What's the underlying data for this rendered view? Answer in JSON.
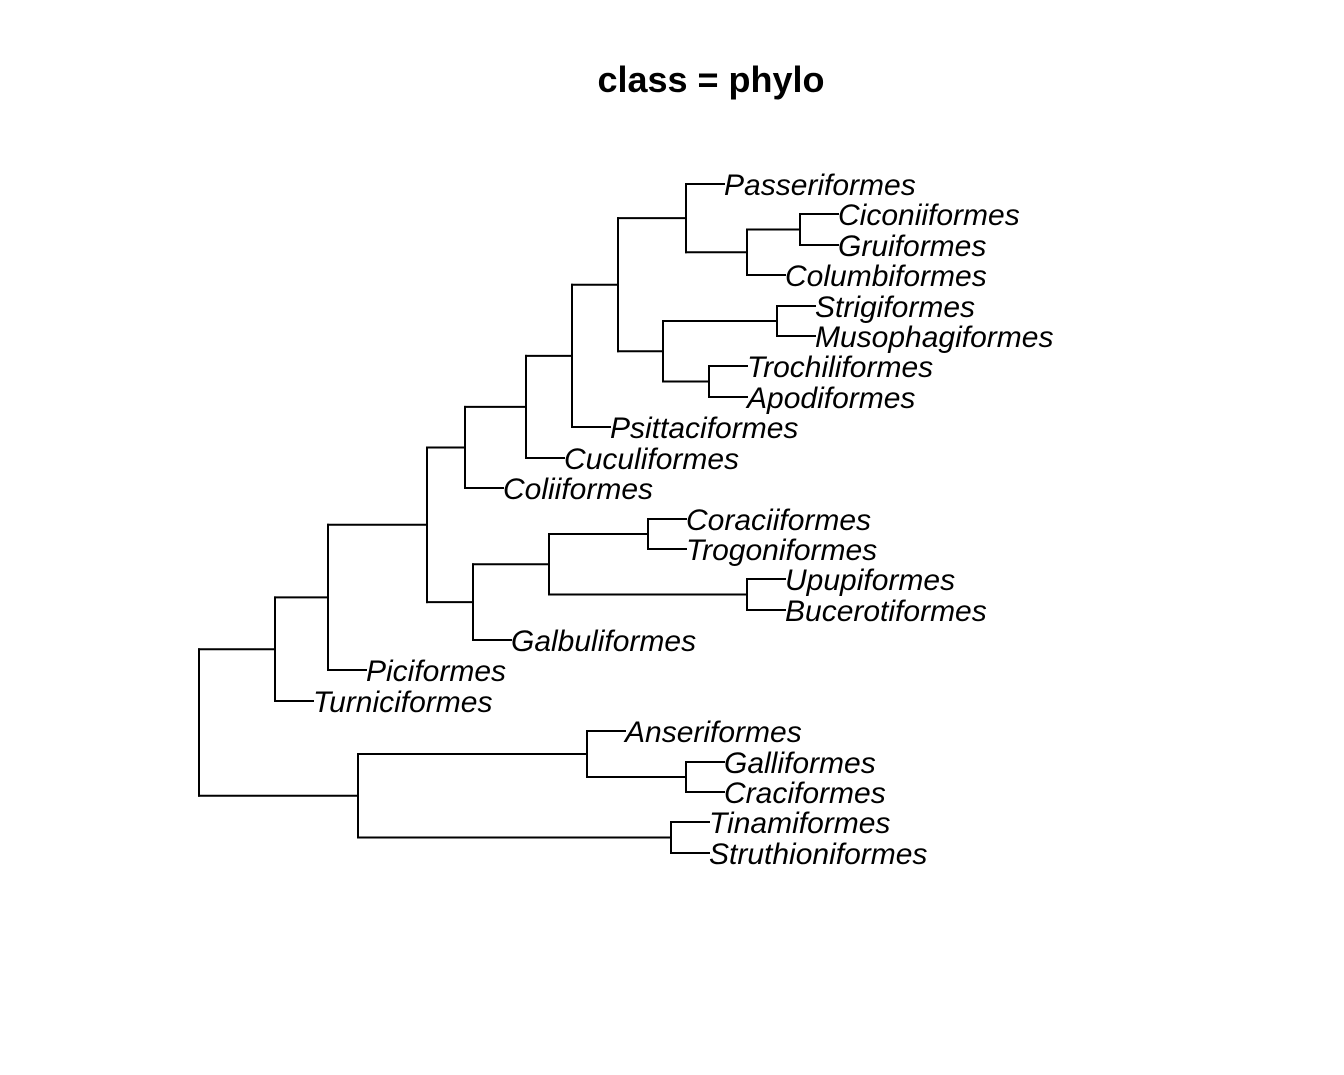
{
  "title": "class = phylo",
  "tree": {
    "children": [
      {
        "children": [
          {
            "children": [
              {
                "children": [
                  {
                    "children": [
                      {
                        "children": [
                          {
                            "children": [
                              {
                                "children": [
                                  {
                                    "name": "Passeriformes"
                                  },
                                  {
                                    "children": [
                                      {
                                        "children": [
                                          {
                                            "name": "Ciconiiformes"
                                          },
                                          {
                                            "name": "Gruiformes"
                                          }
                                        ]
                                      },
                                      {
                                        "name": "Columbiformes"
                                      }
                                    ]
                                  }
                                ]
                              },
                              {
                                "children": [
                                  {
                                    "children": [
                                      {
                                        "name": "Strigiformes"
                                      },
                                      {
                                        "name": "Musophagiformes"
                                      }
                                    ]
                                  },
                                  {
                                    "children": [
                                      {
                                        "name": "Trochiliformes"
                                      },
                                      {
                                        "name": "Apodiformes"
                                      }
                                    ]
                                  }
                                ]
                              }
                            ]
                          },
                          {
                            "name": "Psittaciformes"
                          }
                        ]
                      },
                      {
                        "name": "Cuculiformes"
                      }
                    ]
                  },
                  {
                    "name": "Coliiformes"
                  }
                ]
              },
              {
                "children": [
                  {
                    "children": [
                      {
                        "children": [
                          {
                            "name": "Coraciiformes"
                          },
                          {
                            "name": "Trogoniformes"
                          }
                        ]
                      },
                      {
                        "children": [
                          {
                            "name": "Upupiformes"
                          },
                          {
                            "name": "Bucerotiformes"
                          }
                        ]
                      }
                    ]
                  },
                  {
                    "name": "Galbuliformes"
                  }
                ]
              }
            ]
          },
          {
            "name": "Piciformes"
          }
        ]
      },
      {
        "name": "Turniciformes"
      }
    ]
  }
}
